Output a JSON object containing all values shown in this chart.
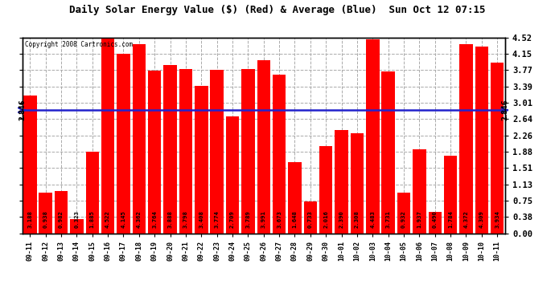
{
  "title": "Daily Solar Energy Value ($) (Red) & Average (Blue)  Sun Oct 12 07:15",
  "copyright": "Copyright 2008 Cartronics.com",
  "average": 2.846,
  "ylim": [
    0,
    4.52
  ],
  "yticks": [
    0.0,
    0.38,
    0.75,
    1.13,
    1.51,
    1.88,
    2.26,
    2.64,
    3.01,
    3.39,
    3.77,
    4.15,
    4.52
  ],
  "bar_color": "#FF0000",
  "avg_line_color": "#2222CC",
  "bg_color": "#FFFFFF",
  "grid_color": "#AAAAAA",
  "categories": [
    "09-11",
    "09-12",
    "09-13",
    "09-14",
    "09-15",
    "09-16",
    "09-17",
    "09-18",
    "09-19",
    "09-20",
    "09-21",
    "09-22",
    "09-23",
    "09-24",
    "09-25",
    "09-26",
    "09-27",
    "09-28",
    "09-29",
    "09-30",
    "10-01",
    "10-02",
    "10-03",
    "10-04",
    "10-05",
    "10-06",
    "10-07",
    "10-08",
    "10-09",
    "10-10",
    "10-11"
  ],
  "values": [
    3.188,
    0.938,
    0.982,
    0.323,
    1.885,
    4.522,
    4.145,
    4.362,
    3.764,
    3.888,
    3.798,
    3.408,
    3.774,
    2.709,
    3.789,
    3.991,
    3.673,
    1.648,
    0.733,
    2.016,
    2.39,
    2.308,
    4.483,
    3.731,
    0.932,
    1.937,
    0.49,
    1.784,
    4.372,
    4.309,
    3.934
  ]
}
